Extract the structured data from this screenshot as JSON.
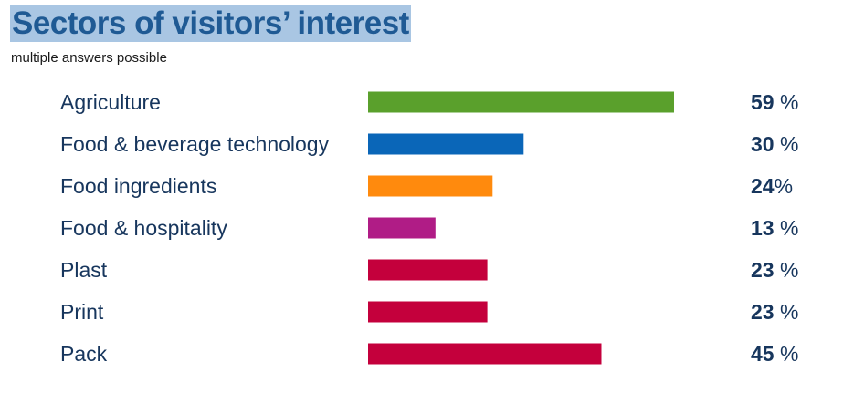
{
  "title": "Sectors of visitors’ interest",
  "subtitle": "multiple answers possible",
  "chart_data": {
    "type": "bar",
    "orientation": "horizontal",
    "title": "Sectors of visitors’ interest",
    "subtitle": "multiple answers possible",
    "xlabel": "",
    "ylabel": "",
    "xlim": [
      0,
      100
    ],
    "grid": false,
    "legend": "none",
    "unit": "%",
    "categories": [
      "Agriculture",
      "Food & beverage technology",
      "Food ingredients",
      "Food & hospitality",
      "Plast",
      "Print",
      "Pack"
    ],
    "values": [
      59,
      30,
      24,
      13,
      23,
      23,
      45
    ],
    "value_labels": [
      "59 %",
      "30 %",
      "24%",
      "13 %",
      "23 %",
      "23 %",
      "45 %"
    ],
    "colors": [
      "#5aa02c",
      "#0a66b8",
      "#ff8a0d",
      "#b01c86",
      "#c4003c",
      "#c4003c",
      "#c4003c"
    ]
  }
}
